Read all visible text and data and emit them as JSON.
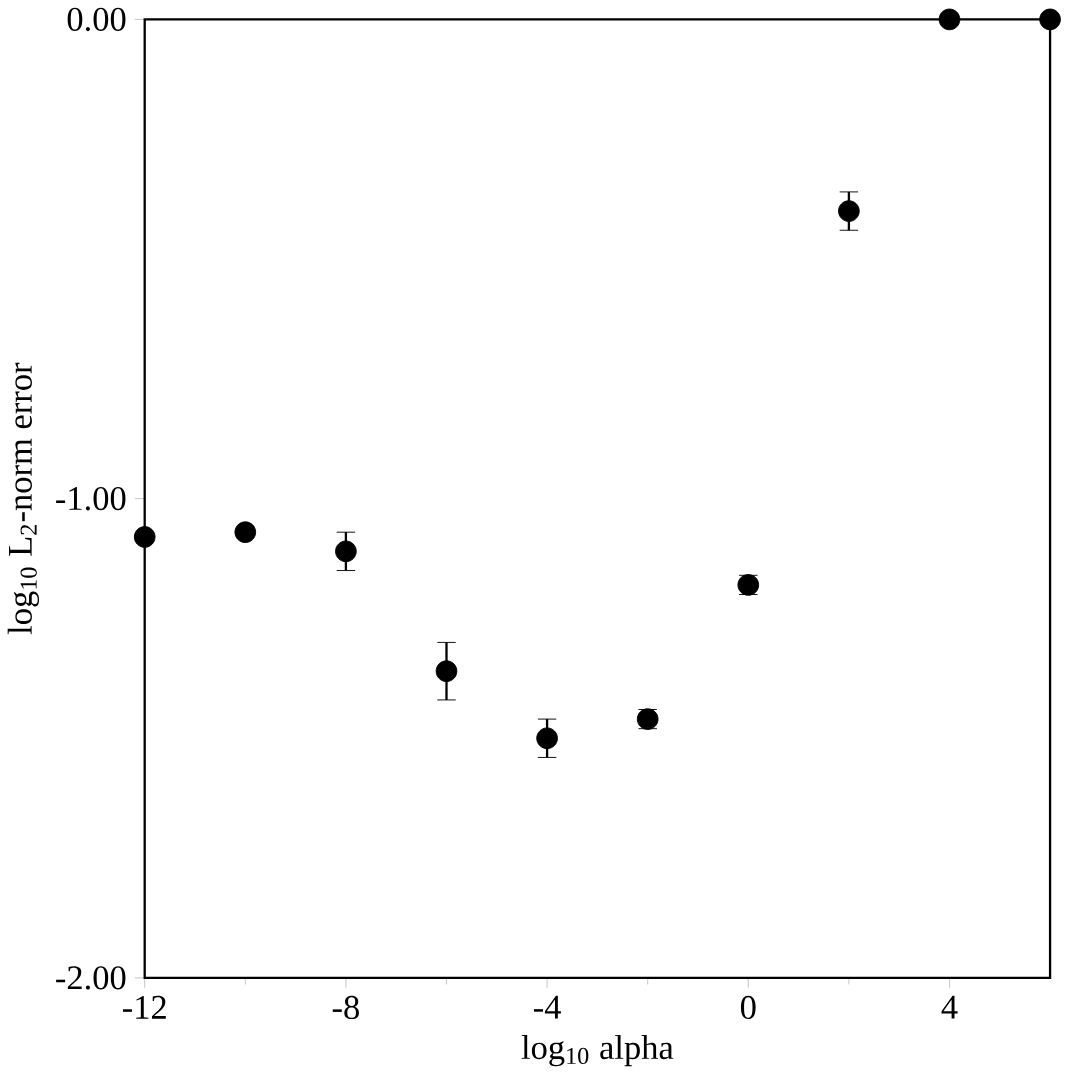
{
  "chart_data": {
    "type": "scatter",
    "xlabel": "log$_{10}$ alpha",
    "ylabel": "log$_{10}$ L$_{2}$-norm error",
    "x": [
      -12,
      -10,
      -8,
      -6,
      -4,
      -2,
      0,
      2,
      4,
      6
    ],
    "values": [
      -1.08,
      -1.07,
      -1.11,
      -1.36,
      -1.5,
      -1.46,
      -1.18,
      -0.4,
      0,
      0
    ],
    "errors": [
      null,
      null,
      0.04,
      0.06,
      0.04,
      0.02,
      0.02,
      0.04,
      0.01,
      null
    ],
    "color": "#000000",
    "marker": "circle",
    "xlim": [
      -12,
      6
    ],
    "xticks": [
      -12,
      -8,
      -4,
      0,
      4
    ],
    "ylim": [
      -2,
      0
    ],
    "yticks": [
      {
        "value": -2,
        "label": "-2.00"
      },
      {
        "value": -1,
        "label": "-1.00"
      },
      {
        "value": 0,
        "label": "0.00"
      }
    ]
  }
}
